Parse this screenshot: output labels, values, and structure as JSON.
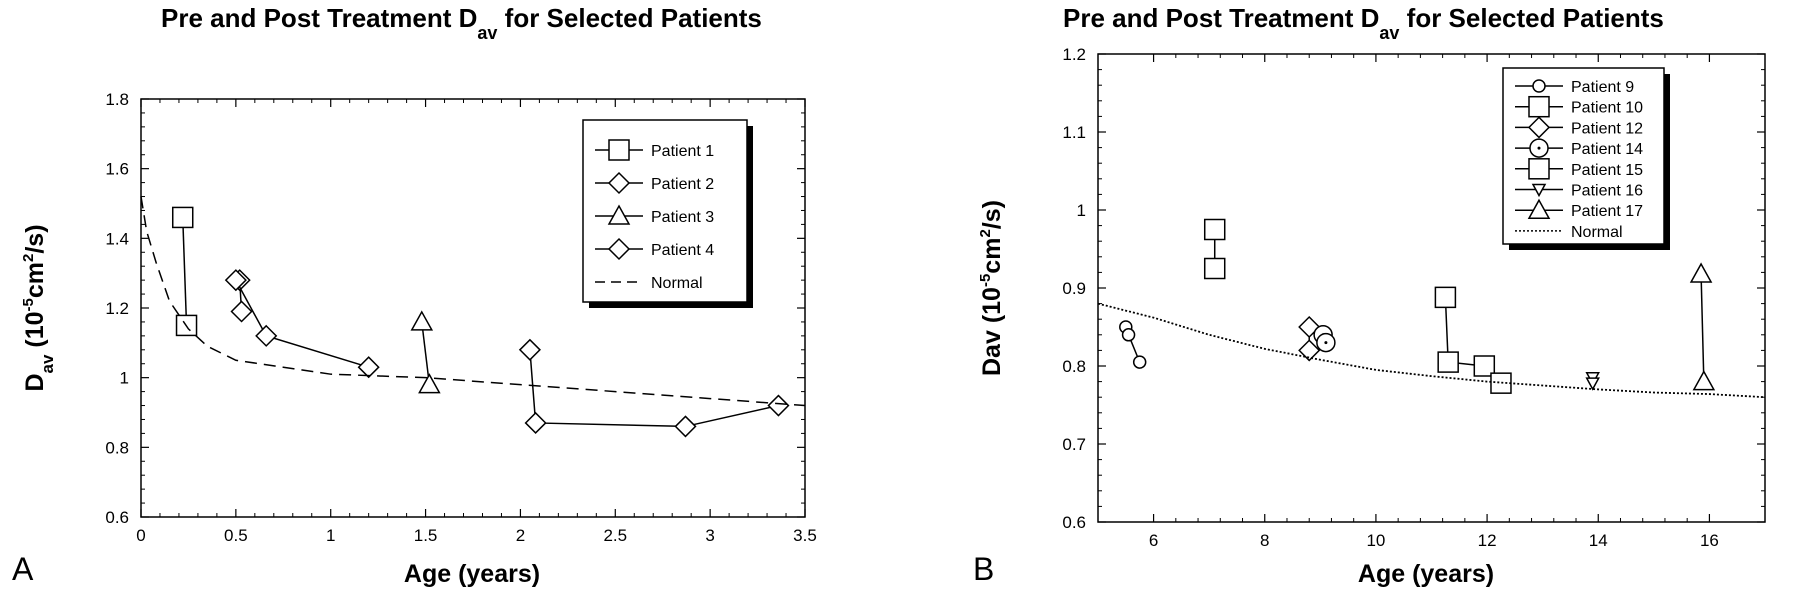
{
  "chart_data": [
    {
      "panel_label": "A",
      "type": "line",
      "title": "Pre and Post Treatment D",
      "title_sub": "av",
      "title_tail": " for Selected Patients",
      "xlabel": "Age (years)",
      "ylabel_main": "D",
      "ylabel_sub": "av",
      "ylabel_unit_pre": " (10",
      "ylabel_unit_exp1": "-5",
      "ylabel_unit_mid": "cm",
      "ylabel_unit_exp2": "2",
      "ylabel_unit_post": "/s)",
      "xlim": [
        0,
        3.5
      ],
      "ylim": [
        0.6,
        1.8
      ],
      "xticks": [
        0,
        0.5,
        1,
        1.5,
        2,
        2.5,
        3,
        3.5
      ],
      "xtick_labels": [
        "0",
        "0.5",
        "1",
        "1.5",
        "2",
        "2.5",
        "3",
        "3.5"
      ],
      "yticks": [
        0.6,
        0.8,
        1,
        1.2,
        1.4,
        1.6,
        1.8
      ],
      "ytick_labels": [
        "0.6",
        "0.8",
        "1",
        "1.2",
        "1.4",
        "1.6",
        "1.8"
      ],
      "grid": false,
      "legend_position": "top-right",
      "series": [
        {
          "name": "Patient 1",
          "marker": "square",
          "points": [
            [
              0.22,
              1.46
            ],
            [
              0.24,
              1.15
            ]
          ]
        },
        {
          "name": "Patient 2",
          "marker": "diamond",
          "points": [
            [
              0.52,
              1.28
            ],
            [
              0.53,
              1.19
            ]
          ]
        },
        {
          "name": "Patient 3",
          "marker": "triangle",
          "points": [
            [
              1.48,
              1.16
            ],
            [
              1.52,
              0.98
            ]
          ]
        },
        {
          "name": "Patient 4",
          "marker": "diamond",
          "points": [
            [
              0.5,
              1.28
            ],
            [
              0.66,
              1.12
            ],
            [
              1.2,
              1.03
            ]
          ]
        },
        {
          "name": "Patient 4",
          "marker": "diamond",
          "points": [
            [
              2.05,
              1.08
            ],
            [
              2.08,
              0.87
            ],
            [
              2.87,
              0.86
            ],
            [
              3.36,
              0.92
            ]
          ]
        },
        {
          "name": "Normal",
          "marker": "none",
          "dash": "dashed",
          "points": [
            [
              0.0,
              1.52
            ],
            [
              0.03,
              1.42
            ],
            [
              0.08,
              1.33
            ],
            [
              0.15,
              1.22
            ],
            [
              0.25,
              1.14
            ],
            [
              0.35,
              1.09
            ],
            [
              0.5,
              1.05
            ],
            [
              0.75,
              1.03
            ],
            [
              1.0,
              1.01
            ],
            [
              1.5,
              1.0
            ],
            [
              2.0,
              0.98
            ],
            [
              2.5,
              0.96
            ],
            [
              3.0,
              0.94
            ],
            [
              3.5,
              0.92
            ]
          ]
        }
      ],
      "legend": [
        {
          "name": "Patient 1",
          "marker": "square"
        },
        {
          "name": "Patient 2",
          "marker": "diamond"
        },
        {
          "name": "Patient 3",
          "marker": "triangle"
        },
        {
          "name": "Patient 4",
          "marker": "diamond"
        },
        {
          "name": "Normal",
          "marker": "dashed"
        }
      ]
    },
    {
      "panel_label": "B",
      "type": "line",
      "title": "Pre and Post Treatment D",
      "title_sub": "av",
      "title_tail": " for Selected Patients",
      "xlabel": "Age (years)",
      "ylabel_main": "Dav",
      "ylabel_sub": "",
      "ylabel_unit_pre": " (10",
      "ylabel_unit_exp1": "-5",
      "ylabel_unit_mid": "cm",
      "ylabel_unit_exp2": "2",
      "ylabel_unit_post": "/s)",
      "xlim": [
        5,
        17
      ],
      "ylim": [
        0.6,
        1.2
      ],
      "xticks": [
        6,
        8,
        10,
        12,
        14,
        16
      ],
      "xtick_labels": [
        "6",
        "8",
        "10",
        "12",
        "14",
        "16"
      ],
      "yticks": [
        0.6,
        0.7,
        0.8,
        0.9,
        1,
        1.1,
        1.2
      ],
      "ytick_labels": [
        "0.6",
        "0.7",
        "0.8",
        "0.9",
        "1",
        "1.1",
        "1.2"
      ],
      "grid": false,
      "legend_position": "top-right",
      "series": [
        {
          "name": "Patient 9",
          "marker": "circle-small",
          "points": [
            [
              5.5,
              0.85
            ],
            [
              5.55,
              0.84
            ],
            [
              5.75,
              0.805
            ]
          ]
        },
        {
          "name": "Patient 10",
          "marker": "square",
          "points": [
            [
              7.1,
              0.975
            ],
            [
              7.1,
              0.925
            ]
          ]
        },
        {
          "name": "Patient 12",
          "marker": "diamond",
          "points": [
            [
              8.8,
              0.85
            ],
            [
              8.8,
              0.82
            ]
          ]
        },
        {
          "name": "Patient 14",
          "marker": "circle-dot",
          "points": [
            [
              9.05,
              0.84
            ],
            [
              9.1,
              0.83
            ]
          ]
        },
        {
          "name": "Patient 15",
          "marker": "square",
          "points": [
            [
              11.25,
              0.888
            ],
            [
              11.3,
              0.805
            ],
            [
              11.95,
              0.8
            ],
            [
              12.25,
              0.778
            ]
          ]
        },
        {
          "name": "Patient 16",
          "marker": "triangle-down",
          "points": [
            [
              13.9,
              0.785
            ],
            [
              13.9,
              0.778
            ]
          ]
        },
        {
          "name": "Patient 17",
          "marker": "triangle",
          "points": [
            [
              15.85,
              0.918
            ],
            [
              15.9,
              0.78
            ]
          ]
        },
        {
          "name": "Normal",
          "marker": "none",
          "dash": "dotted",
          "points": [
            [
              5,
              0.88
            ],
            [
              6,
              0.862
            ],
            [
              7,
              0.84
            ],
            [
              8,
              0.822
            ],
            [
              9,
              0.808
            ],
            [
              10,
              0.795
            ],
            [
              11,
              0.787
            ],
            [
              12,
              0.78
            ],
            [
              13,
              0.775
            ],
            [
              14,
              0.77
            ],
            [
              15,
              0.766
            ],
            [
              16,
              0.764
            ],
            [
              17,
              0.76
            ]
          ]
        }
      ],
      "legend": [
        {
          "name": "Patient 9",
          "marker": "circle-small"
        },
        {
          "name": "Patient 10",
          "marker": "square"
        },
        {
          "name": "Patient 12",
          "marker": "diamond"
        },
        {
          "name": "Patient 14",
          "marker": "circle-dot"
        },
        {
          "name": "Patient 15",
          "marker": "square"
        },
        {
          "name": "Patient 16",
          "marker": "triangle-down"
        },
        {
          "name": "Patient 17",
          "marker": "triangle"
        },
        {
          "name": "Normal",
          "marker": "dotted"
        }
      ]
    }
  ]
}
